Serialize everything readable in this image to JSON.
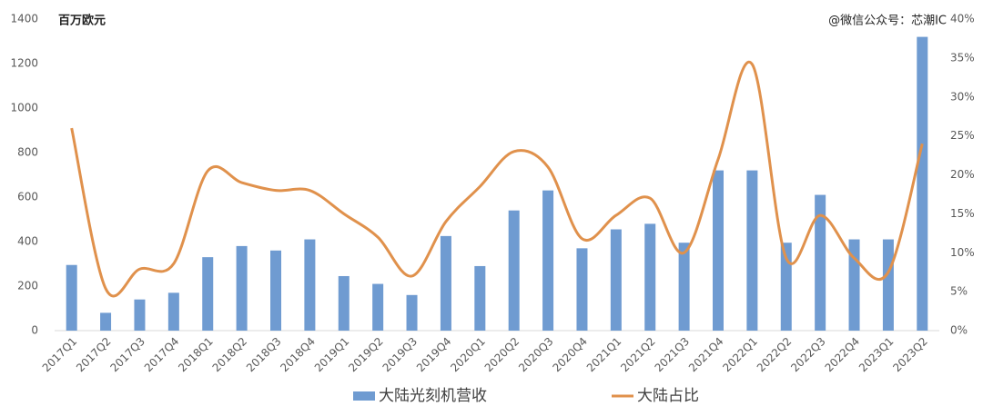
{
  "chart_data": {
    "type": "bar_line",
    "y_unit": "百万欧元",
    "watermark": "@微信公众号：芯潮IC",
    "categories": [
      "2017Q1",
      "2017Q2",
      "2017Q3",
      "2017Q4",
      "2018Q1",
      "2018Q2",
      "2018Q3",
      "2018Q4",
      "2019Q1",
      "2019Q2",
      "2019Q3",
      "2019Q4",
      "2020Q1",
      "2020Q2",
      "2020Q3",
      "2020Q4",
      "2021Q1",
      "2021Q2",
      "2021Q3",
      "2021Q4",
      "2022Q1",
      "2022Q2",
      "2022Q3",
      "2022Q4",
      "2023Q1",
      "2023Q2"
    ],
    "series": [
      {
        "name": "大陆光刻机营收",
        "type": "bar",
        "color": "#6f9bd1",
        "values": [
          295,
          80,
          140,
          170,
          330,
          380,
          360,
          410,
          245,
          210,
          160,
          425,
          290,
          540,
          630,
          370,
          455,
          480,
          395,
          720,
          720,
          395,
          610,
          410,
          410,
          1320
        ]
      },
      {
        "name": "大陆占比",
        "type": "line",
        "axis": "y2",
        "color": "#e0914c",
        "smooth": true,
        "values": [
          26,
          5.4,
          7.9,
          8.6,
          20.5,
          19,
          18,
          18,
          15,
          12,
          7,
          14,
          18.5,
          23,
          21,
          11.8,
          14.8,
          17,
          10,
          22,
          34.2,
          9.3,
          14.8,
          9.3,
          7.5,
          24
        ]
      }
    ],
    "ylim": [
      0,
      1400
    ],
    "yticks": [
      0,
      200,
      400,
      600,
      800,
      1000,
      1200,
      1400
    ],
    "y2lim": [
      0,
      40
    ],
    "y2ticks": [
      {
        "value": 0,
        "label": "0%"
      },
      {
        "value": 5,
        "label": "5%"
      },
      {
        "value": 10,
        "label": "10%"
      },
      {
        "value": 15,
        "label": "15%"
      },
      {
        "value": 20,
        "label": "20%"
      },
      {
        "value": 25,
        "label": "25%"
      },
      {
        "value": 30,
        "label": "30%"
      },
      {
        "value": 35,
        "label": "35%"
      },
      {
        "value": 40,
        "label": "40%"
      }
    ],
    "grid": false,
    "legend": "bottom"
  }
}
